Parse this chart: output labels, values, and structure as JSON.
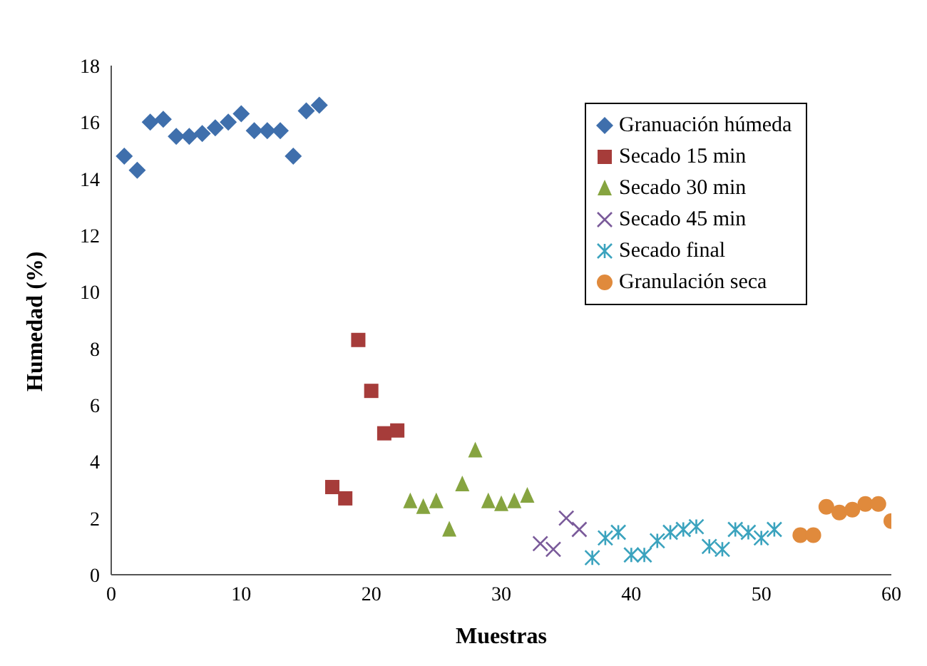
{
  "chart_data": {
    "type": "scatter",
    "xlabel": "Muestras",
    "ylabel": "Humedad (%)",
    "xlim": [
      0,
      60
    ],
    "xticks": [
      0,
      10,
      20,
      30,
      40,
      50,
      60
    ],
    "ylim": [
      0,
      18
    ],
    "yticks": [
      0,
      2,
      4,
      6,
      8,
      10,
      12,
      14,
      16,
      18
    ],
    "grid": false,
    "legend": "top right",
    "series": [
      {
        "name": "Granuación húmeda",
        "color": "#3f6fac",
        "marker": "diamond",
        "x": [
          1,
          2,
          3,
          4,
          5,
          6,
          7,
          8,
          9,
          10,
          11,
          12,
          13,
          14,
          15,
          16
        ],
        "values": [
          14.8,
          14.3,
          16.0,
          16.1,
          15.5,
          15.5,
          15.6,
          15.8,
          16.0,
          16.3,
          15.7,
          15.7,
          15.7,
          14.8,
          16.4,
          16.6
        ]
      },
      {
        "name": "Secado 15 min",
        "color": "#a63c3a",
        "marker": "square",
        "x": [
          17,
          18,
          19,
          20,
          21,
          22
        ],
        "values": [
          3.1,
          2.7,
          8.3,
          6.5,
          5.0,
          5.1
        ]
      },
      {
        "name": "Secado 30 min",
        "color": "#86a440",
        "marker": "triangle",
        "x": [
          23,
          24,
          25,
          26,
          27,
          28,
          29,
          30,
          31,
          32
        ],
        "values": [
          2.6,
          2.4,
          2.6,
          1.6,
          3.2,
          4.4,
          2.6,
          2.5,
          2.6,
          2.8
        ]
      },
      {
        "name": "Secado 45 min",
        "color": "#7a5a9a",
        "marker": "cross",
        "x": [
          33,
          34,
          35,
          36
        ],
        "values": [
          1.1,
          0.9,
          2.0,
          1.6
        ]
      },
      {
        "name": "Secado final",
        "color": "#3ba3be",
        "x": [
          37,
          38,
          39,
          40,
          41,
          42,
          43,
          44,
          45,
          46,
          47,
          48,
          49,
          50,
          51
        ],
        "values": [
          0.6,
          1.3,
          1.5,
          0.7,
          0.7,
          1.2,
          1.5,
          1.6,
          1.7,
          1.0,
          0.9,
          1.6,
          1.5,
          1.3,
          1.6
        ]
      },
      {
        "name": "Granulación seca",
        "color": "#e08a3c",
        "marker": "circle",
        "x": [
          53,
          54,
          55,
          56,
          57,
          58,
          59,
          60
        ],
        "values": [
          1.4,
          1.4,
          2.4,
          2.2,
          2.3,
          2.5,
          2.5,
          1.9
        ]
      }
    ]
  }
}
